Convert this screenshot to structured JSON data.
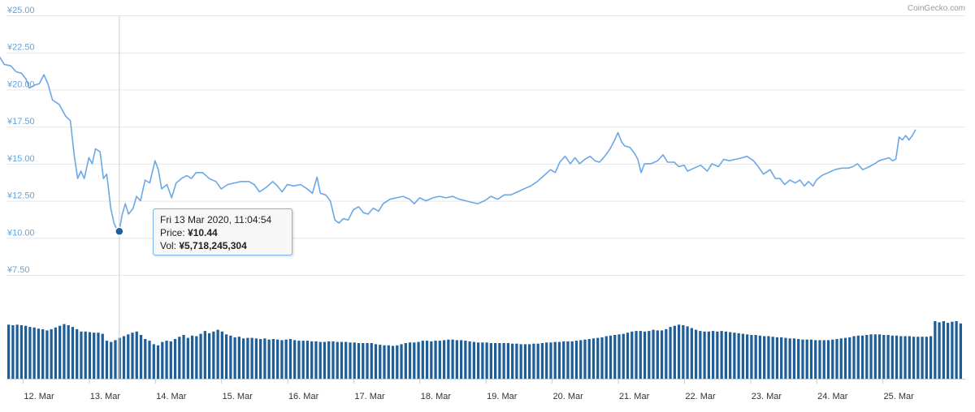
{
  "watermark": "CoinGecko.com",
  "colors": {
    "line": "#6aa8e6",
    "bars": "#1f5f99",
    "axis_text_y": "#63a4dc",
    "axis_text_x": "#333333",
    "grid": "#e6e6e6",
    "marker": "#1f5f99"
  },
  "tooltip": {
    "date": "Fri 13 Mar 2020, 11:04:54",
    "price_label": "Price:",
    "price_value": "¥10.44",
    "vol_label": "Vol:",
    "vol_value": "¥5,718,245,304"
  },
  "chart_data": {
    "type": "line",
    "x_unit": "days since 12 Mar 00:00",
    "x_range": [
      -0.35,
      13.5
    ],
    "y_ticks": [
      "¥7.50",
      "¥10.00",
      "¥12.50",
      "¥15.00",
      "¥17.50",
      "¥20.00",
      "¥22.50",
      "¥25.00"
    ],
    "x_ticks": [
      "12. Mar",
      "13. Mar",
      "14. Mar",
      "15. Mar",
      "16. Mar",
      "17. Mar",
      "18. Mar",
      "19. Mar",
      "20. Mar",
      "21. Mar",
      "22. Mar",
      "23. Mar",
      "24. Mar",
      "25. Mar"
    ],
    "ylim": [
      7.5,
      25
    ],
    "grid": true,
    "highlight": {
      "x": 1.46,
      "y": 10.44
    },
    "series": [
      {
        "values": [
          [
            -0.35,
            22.2
          ],
          [
            -0.28,
            21.7
          ],
          [
            -0.18,
            21.6
          ],
          [
            -0.1,
            21.2
          ],
          [
            -0.02,
            21.1
          ],
          [
            0.05,
            20.7
          ],
          [
            0.1,
            20.1
          ],
          [
            0.18,
            20.3
          ],
          [
            0.25,
            20.4
          ],
          [
            0.32,
            21.0
          ],
          [
            0.38,
            20.4
          ],
          [
            0.45,
            19.3
          ],
          [
            0.55,
            19.0
          ],
          [
            0.65,
            18.2
          ],
          [
            0.72,
            17.9
          ],
          [
            0.78,
            15.5
          ],
          [
            0.83,
            14.0
          ],
          [
            0.88,
            14.5
          ],
          [
            0.93,
            14.0
          ],
          [
            1.0,
            15.4
          ],
          [
            1.05,
            15.0
          ],
          [
            1.1,
            16.0
          ],
          [
            1.17,
            15.8
          ],
          [
            1.22,
            14.0
          ],
          [
            1.27,
            14.3
          ],
          [
            1.33,
            12.0
          ],
          [
            1.38,
            11.0
          ],
          [
            1.43,
            10.5
          ],
          [
            1.46,
            10.44
          ],
          [
            1.5,
            11.5
          ],
          [
            1.55,
            12.3
          ],
          [
            1.6,
            11.6
          ],
          [
            1.67,
            12.0
          ],
          [
            1.72,
            12.8
          ],
          [
            1.78,
            12.5
          ],
          [
            1.85,
            13.9
          ],
          [
            1.92,
            13.7
          ],
          [
            2.0,
            15.2
          ],
          [
            2.05,
            14.6
          ],
          [
            2.1,
            13.3
          ],
          [
            2.18,
            13.6
          ],
          [
            2.25,
            12.7
          ],
          [
            2.32,
            13.7
          ],
          [
            2.4,
            14.0
          ],
          [
            2.48,
            14.2
          ],
          [
            2.55,
            14.0
          ],
          [
            2.62,
            14.4
          ],
          [
            2.72,
            14.4
          ],
          [
            2.82,
            14.0
          ],
          [
            2.92,
            13.8
          ],
          [
            3.0,
            13.3
          ],
          [
            3.1,
            13.6
          ],
          [
            3.2,
            13.7
          ],
          [
            3.3,
            13.8
          ],
          [
            3.42,
            13.8
          ],
          [
            3.5,
            13.6
          ],
          [
            3.58,
            13.1
          ],
          [
            3.68,
            13.4
          ],
          [
            3.78,
            13.8
          ],
          [
            3.85,
            13.5
          ],
          [
            3.92,
            13.1
          ],
          [
            4.0,
            13.6
          ],
          [
            4.1,
            13.5
          ],
          [
            4.2,
            13.6
          ],
          [
            4.3,
            13.3
          ],
          [
            4.38,
            13.0
          ],
          [
            4.45,
            14.1
          ],
          [
            4.5,
            13.0
          ],
          [
            4.58,
            12.9
          ],
          [
            4.65,
            12.5
          ],
          [
            4.72,
            11.2
          ],
          [
            4.78,
            11.0
          ],
          [
            4.85,
            11.3
          ],
          [
            4.92,
            11.2
          ],
          [
            5.0,
            11.9
          ],
          [
            5.08,
            12.1
          ],
          [
            5.15,
            11.7
          ],
          [
            5.22,
            11.6
          ],
          [
            5.3,
            12.0
          ],
          [
            5.38,
            11.8
          ],
          [
            5.45,
            12.3
          ],
          [
            5.55,
            12.6
          ],
          [
            5.65,
            12.7
          ],
          [
            5.75,
            12.8
          ],
          [
            5.85,
            12.6
          ],
          [
            5.92,
            12.3
          ],
          [
            6.0,
            12.7
          ],
          [
            6.1,
            12.5
          ],
          [
            6.2,
            12.7
          ],
          [
            6.3,
            12.8
          ],
          [
            6.4,
            12.7
          ],
          [
            6.5,
            12.8
          ],
          [
            6.6,
            12.6
          ],
          [
            6.7,
            12.5
          ],
          [
            6.78,
            12.4
          ],
          [
            6.88,
            12.3
          ],
          [
            6.98,
            12.5
          ],
          [
            7.08,
            12.8
          ],
          [
            7.18,
            12.6
          ],
          [
            7.28,
            12.9
          ],
          [
            7.38,
            12.9
          ],
          [
            7.48,
            13.1
          ],
          [
            7.58,
            13.3
          ],
          [
            7.68,
            13.5
          ],
          [
            7.78,
            13.8
          ],
          [
            7.88,
            14.2
          ],
          [
            7.98,
            14.6
          ],
          [
            8.05,
            14.4
          ],
          [
            8.12,
            15.1
          ],
          [
            8.2,
            15.5
          ],
          [
            8.28,
            15.0
          ],
          [
            8.35,
            15.4
          ],
          [
            8.42,
            15.0
          ],
          [
            8.5,
            15.3
          ],
          [
            8.58,
            15.5
          ],
          [
            8.65,
            15.2
          ],
          [
            8.72,
            15.1
          ],
          [
            8.8,
            15.5
          ],
          [
            8.88,
            16.0
          ],
          [
            8.95,
            16.6
          ],
          [
            9.0,
            17.1
          ],
          [
            9.05,
            16.5
          ],
          [
            9.1,
            16.2
          ],
          [
            9.18,
            16.1
          ],
          [
            9.25,
            15.7
          ],
          [
            9.3,
            15.3
          ],
          [
            9.35,
            14.4
          ],
          [
            9.4,
            15.0
          ],
          [
            9.5,
            15.0
          ],
          [
            9.6,
            15.2
          ],
          [
            9.68,
            15.6
          ],
          [
            9.75,
            15.1
          ],
          [
            9.85,
            15.1
          ],
          [
            9.92,
            14.8
          ],
          [
            10.0,
            14.9
          ],
          [
            10.05,
            14.5
          ],
          [
            10.15,
            14.7
          ],
          [
            10.25,
            14.9
          ],
          [
            10.35,
            14.5
          ],
          [
            10.42,
            15.0
          ],
          [
            10.52,
            14.8
          ],
          [
            10.6,
            15.3
          ],
          [
            10.68,
            15.2
          ],
          [
            10.78,
            15.3
          ],
          [
            10.88,
            15.4
          ],
          [
            10.95,
            15.5
          ],
          [
            11.05,
            15.2
          ],
          [
            11.12,
            14.8
          ],
          [
            11.2,
            14.3
          ],
          [
            11.3,
            14.6
          ],
          [
            11.38,
            14.0
          ],
          [
            11.45,
            14.0
          ],
          [
            11.52,
            13.6
          ],
          [
            11.6,
            13.9
          ],
          [
            11.68,
            13.7
          ],
          [
            11.75,
            13.9
          ],
          [
            11.82,
            13.5
          ],
          [
            11.88,
            13.8
          ],
          [
            11.95,
            13.5
          ],
          [
            12.0,
            13.9
          ],
          [
            12.08,
            14.2
          ],
          [
            12.18,
            14.4
          ],
          [
            12.28,
            14.6
          ],
          [
            12.38,
            14.7
          ],
          [
            12.48,
            14.7
          ],
          [
            12.55,
            14.8
          ],
          [
            12.62,
            15.0
          ],
          [
            12.7,
            14.6
          ],
          [
            12.8,
            14.8
          ],
          [
            12.88,
            15.0
          ],
          [
            12.95,
            15.2
          ],
          [
            13.02,
            15.3
          ],
          [
            13.1,
            15.4
          ],
          [
            13.15,
            15.2
          ],
          [
            13.2,
            15.3
          ],
          [
            13.25,
            16.8
          ],
          [
            13.3,
            16.6
          ],
          [
            13.35,
            16.9
          ],
          [
            13.4,
            16.6
          ],
          [
            13.45,
            16.9
          ],
          [
            13.5,
            17.3
          ]
        ]
      }
    ],
    "volume_rel": [
      0.94,
      0.93,
      0.94,
      0.93,
      0.92,
      0.9,
      0.89,
      0.87,
      0.86,
      0.84,
      0.86,
      0.89,
      0.92,
      0.95,
      0.93,
      0.9,
      0.86,
      0.82,
      0.82,
      0.81,
      0.8,
      0.8,
      0.78,
      0.66,
      0.64,
      0.67,
      0.71,
      0.74,
      0.77,
      0.8,
      0.82,
      0.76,
      0.69,
      0.66,
      0.6,
      0.58,
      0.64,
      0.66,
      0.65,
      0.69,
      0.73,
      0.76,
      0.71,
      0.75,
      0.74,
      0.78,
      0.83,
      0.79,
      0.82,
      0.85,
      0.82,
      0.77,
      0.75,
      0.72,
      0.73,
      0.7,
      0.71,
      0.71,
      0.7,
      0.69,
      0.7,
      0.68,
      0.69,
      0.68,
      0.67,
      0.68,
      0.69,
      0.67,
      0.66,
      0.66,
      0.66,
      0.65,
      0.65,
      0.64,
      0.64,
      0.65,
      0.65,
      0.64,
      0.64,
      0.64,
      0.63,
      0.63,
      0.62,
      0.62,
      0.62,
      0.62,
      0.6,
      0.59,
      0.58,
      0.58,
      0.57,
      0.58,
      0.6,
      0.62,
      0.63,
      0.63,
      0.64,
      0.66,
      0.66,
      0.65,
      0.66,
      0.66,
      0.67,
      0.68,
      0.68,
      0.67,
      0.67,
      0.66,
      0.65,
      0.64,
      0.63,
      0.63,
      0.63,
      0.62,
      0.62,
      0.62,
      0.62,
      0.62,
      0.61,
      0.61,
      0.6,
      0.6,
      0.6,
      0.61,
      0.61,
      0.62,
      0.63,
      0.63,
      0.64,
      0.64,
      0.65,
      0.65,
      0.65,
      0.66,
      0.67,
      0.68,
      0.69,
      0.7,
      0.71,
      0.72,
      0.74,
      0.75,
      0.76,
      0.77,
      0.78,
      0.8,
      0.82,
      0.83,
      0.83,
      0.82,
      0.83,
      0.85,
      0.84,
      0.84,
      0.86,
      0.9,
      0.92,
      0.94,
      0.93,
      0.91,
      0.88,
      0.85,
      0.83,
      0.82,
      0.82,
      0.83,
      0.82,
      0.83,
      0.82,
      0.81,
      0.8,
      0.79,
      0.78,
      0.77,
      0.76,
      0.76,
      0.75,
      0.74,
      0.74,
      0.73,
      0.72,
      0.72,
      0.71,
      0.7,
      0.7,
      0.69,
      0.68,
      0.68,
      0.68,
      0.67,
      0.67,
      0.67,
      0.67,
      0.68,
      0.69,
      0.7,
      0.71,
      0.72,
      0.74,
      0.75,
      0.75,
      0.76,
      0.77,
      0.77,
      0.77,
      0.76,
      0.76,
      0.75,
      0.75,
      0.74,
      0.74,
      0.74,
      0.73,
      0.73,
      0.73,
      0.73,
      0.74,
      1.0,
      0.98,
      1.0,
      0.97,
      0.99,
      1.0,
      0.96
    ]
  }
}
